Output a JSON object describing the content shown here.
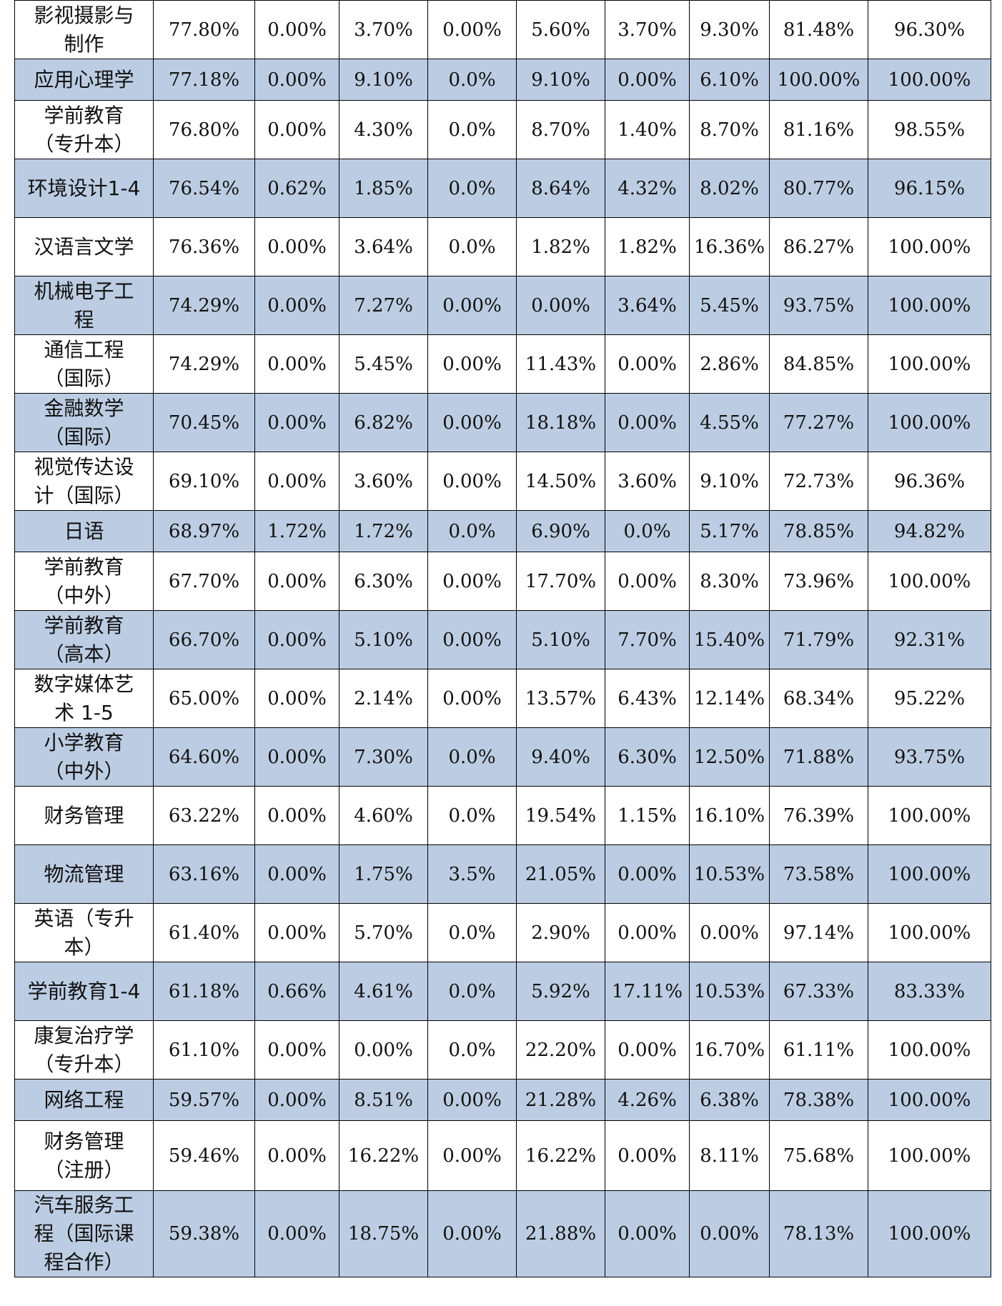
{
  "table": {
    "rows": [
      {
        "name": "影视摄影与制作",
        "cells": [
          "77.80%",
          "0.00%",
          "3.70%",
          "0.00%",
          "5.60%",
          "3.70%",
          "9.30%",
          "81.48%",
          "96.30%"
        ]
      },
      {
        "name": "应用心理学",
        "cells": [
          "77.18%",
          "0.00%",
          "9.10%",
          "0.0%",
          "9.10%",
          "0.00%",
          "6.10%",
          "100.00%",
          "100.00%"
        ]
      },
      {
        "name": "学前教育（专升本）",
        "cells": [
          "76.80%",
          "0.00%",
          "4.30%",
          "0.0%",
          "8.70%",
          "1.40%",
          "8.70%",
          "81.16%",
          "98.55%"
        ]
      },
      {
        "name": "环境设计1-4",
        "cells": [
          "76.54%",
          "0.62%",
          "1.85%",
          "0.0%",
          "8.64%",
          "4.32%",
          "8.02%",
          "80.77%",
          "96.15%"
        ]
      },
      {
        "name": "汉语言文学",
        "cells": [
          "76.36%",
          "0.00%",
          "3.64%",
          "0.0%",
          "1.82%",
          "1.82%",
          "16.36%",
          "86.27%",
          "100.00%"
        ]
      },
      {
        "name": "机械电子工程",
        "cells": [
          "74.29%",
          "0.00%",
          "7.27%",
          "0.00%",
          "0.00%",
          "3.64%",
          "5.45%",
          "93.75%",
          "100.00%"
        ]
      },
      {
        "name": "通信工程（国际）",
        "cells": [
          "74.29%",
          "0.00%",
          "5.45%",
          "0.00%",
          "11.43%",
          "0.00%",
          "2.86%",
          "84.85%",
          "100.00%"
        ]
      },
      {
        "name": "金融数学（国际）",
        "cells": [
          "70.45%",
          "0.00%",
          "6.82%",
          "0.00%",
          "18.18%",
          "0.00%",
          "4.55%",
          "77.27%",
          "100.00%"
        ]
      },
      {
        "name": "视觉传达设计（国际）",
        "cells": [
          "69.10%",
          "0.00%",
          "3.60%",
          "0.00%",
          "14.50%",
          "3.60%",
          "9.10%",
          "72.73%",
          "96.36%"
        ]
      },
      {
        "name": "日语",
        "cells": [
          "68.97%",
          "1.72%",
          "1.72%",
          "0.0%",
          "6.90%",
          "0.0%",
          "5.17%",
          "78.85%",
          "94.82%"
        ]
      },
      {
        "name": "学前教育（中外）",
        "cells": [
          "67.70%",
          "0.00%",
          "6.30%",
          "0.00%",
          "17.70%",
          "0.00%",
          "8.30%",
          "73.96%",
          "100.00%"
        ]
      },
      {
        "name": "学前教育（高本）",
        "cells": [
          "66.70%",
          "0.00%",
          "5.10%",
          "0.00%",
          "5.10%",
          "7.70%",
          "15.40%",
          "71.79%",
          "92.31%"
        ]
      },
      {
        "name": "数字媒体艺术 1-5",
        "cells": [
          "65.00%",
          "0.00%",
          "2.14%",
          "0.00%",
          "13.57%",
          "6.43%",
          "12.14%",
          "68.34%",
          "95.22%"
        ]
      },
      {
        "name": "小学教育（中外）",
        "cells": [
          "64.60%",
          "0.00%",
          "7.30%",
          "0.0%",
          "9.40%",
          "6.30%",
          "12.50%",
          "71.88%",
          "93.75%"
        ]
      },
      {
        "name": "财务管理",
        "cells": [
          "63.22%",
          "0.00%",
          "4.60%",
          "0.0%",
          "19.54%",
          "1.15%",
          "16.10%",
          "76.39%",
          "100.00%"
        ]
      },
      {
        "name": "物流管理",
        "cells": [
          "63.16%",
          "0.00%",
          "1.75%",
          "3.5%",
          "21.05%",
          "0.00%",
          "10.53%",
          "73.58%",
          "100.00%"
        ]
      },
      {
        "name": "英语（专升本）",
        "cells": [
          "61.40%",
          "0.00%",
          "5.70%",
          "0.0%",
          "2.90%",
          "0.00%",
          "0.00%",
          "97.14%",
          "100.00%"
        ]
      },
      {
        "name": "学前教育1-4",
        "cells": [
          "61.18%",
          "0.66%",
          "4.61%",
          "0.0%",
          "5.92%",
          "17.11%",
          "10.53%",
          "67.33%",
          "83.33%"
        ]
      },
      {
        "name": "康复治疗学（专升本）",
        "cells": [
          "61.10%",
          "0.00%",
          "0.00%",
          "0.0%",
          "22.20%",
          "0.00%",
          "16.70%",
          "61.11%",
          "100.00%"
        ]
      },
      {
        "name": "网络工程",
        "cells": [
          "59.57%",
          "0.00%",
          "8.51%",
          "0.00%",
          "21.28%",
          "4.26%",
          "6.38%",
          "78.38%",
          "100.00%"
        ]
      },
      {
        "name": "财务管理（注册）",
        "cells": [
          "59.46%",
          "0.00%",
          "16.22%",
          "0.00%",
          "16.22%",
          "0.00%",
          "8.11%",
          "75.68%",
          "100.00%"
        ]
      },
      {
        "name": "汽车服务工程（国际课程合作）",
        "cells": [
          "59.38%",
          "0.00%",
          "18.75%",
          "0.00%",
          "21.88%",
          "0.00%",
          "0.00%",
          "78.13%",
          "100.00%"
        ]
      }
    ]
  }
}
